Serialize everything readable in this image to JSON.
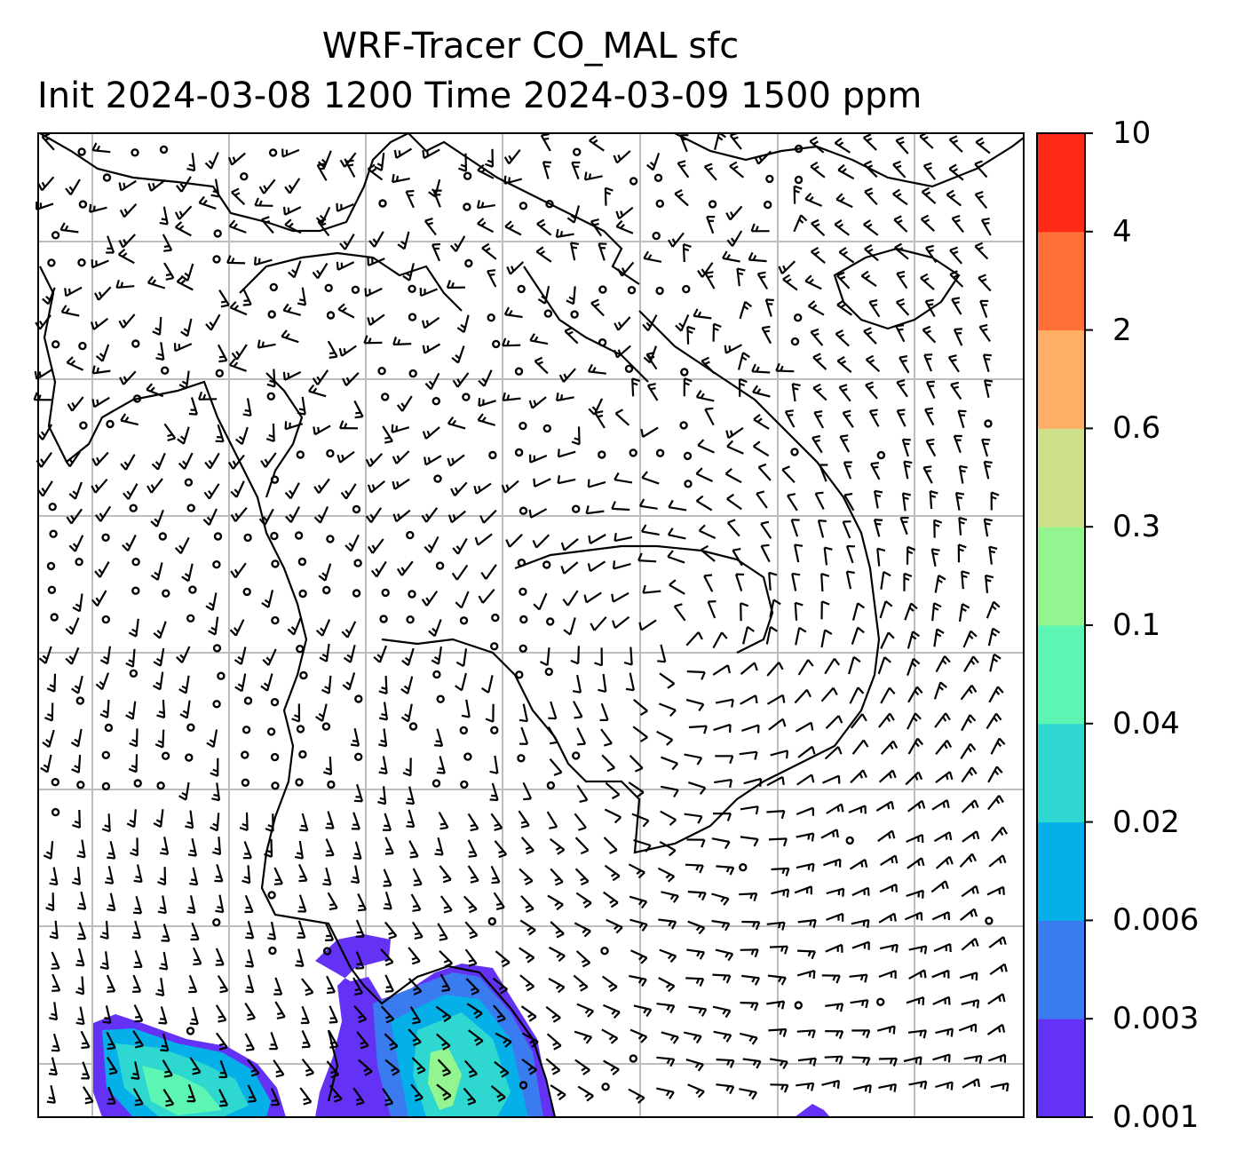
{
  "title": {
    "line1": "WRF-Tracer CO_MAL sfc",
    "line2": "Init 2024-03-08 1200 Time 2024-03-09 1500 ppm"
  },
  "colorbar": {
    "levels": [
      "0.001",
      "0.003",
      "0.006",
      "0.02",
      "0.04",
      "0.1",
      "0.3",
      "0.6",
      "2",
      "4",
      "10"
    ],
    "colors": [
      "#6432f5",
      "#3a7bf0",
      "#05b0e8",
      "#2ed8d0",
      "#5cf5b4",
      "#93f58f",
      "#cfe08a",
      "#ffb066",
      "#ff7038",
      "#ff2a15"
    ]
  },
  "map": {
    "gridlines": true,
    "gridline_color": "#bdbdbd",
    "coastline_color": "#000000",
    "barb_color": "#000000"
  }
}
